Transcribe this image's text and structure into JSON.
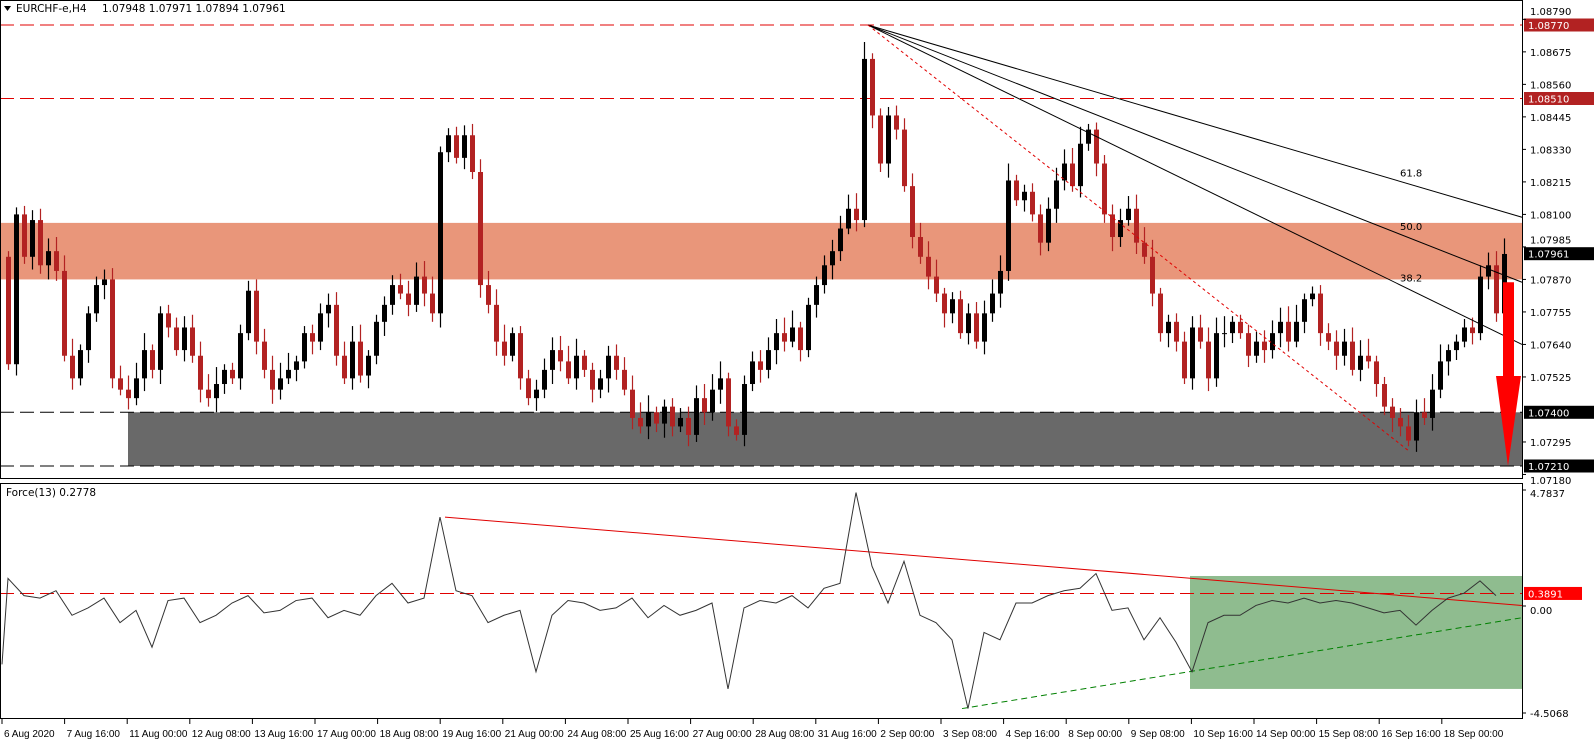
{
  "header": {
    "symbol": "EURCHF-e,H4",
    "ohlc": "1.07948 1.07971 1.07894 1.07961"
  },
  "indicator": {
    "label": "Force(13) 0.2778"
  },
  "colors": {
    "bull": "#000000",
    "bear": "#b22222",
    "resistance_zone": "#e9967a",
    "support_zone": "#696969",
    "force_zone": "#8fbc8f",
    "arrow": "#ff0000",
    "level_red": "#ff0000"
  },
  "chart_data": [
    {
      "type": "candlestick",
      "title": "EURCHF-e,H4",
      "ylim": [
        1.0718,
        1.0879
      ],
      "y_ticks": [
        "1.08790",
        "1.08675",
        "1.08560",
        "1.08445",
        "1.08330",
        "1.08215",
        "1.08100",
        "1.07985",
        "1.07870",
        "1.07755",
        "1.07640",
        "1.07525",
        "1.07295",
        "1.07180"
      ],
      "x_ticks": [
        "6 Aug 2020",
        "7 Aug 16:00",
        "11 Aug 00:00",
        "12 Aug 08:00",
        "13 Aug 16:00",
        "17 Aug 00:00",
        "18 Aug 08:00",
        "19 Aug 16:00",
        "21 Aug 00:00",
        "24 Aug 08:00",
        "25 Aug 16:00",
        "27 Aug 00:00",
        "28 Aug 08:00",
        "31 Aug 16:00",
        "2 Sep 00:00",
        "3 Sep 08:00",
        "4 Sep 16:00",
        "8 Sep 00:00",
        "9 Sep 08:00",
        "10 Sep 16:00",
        "14 Sep 00:00",
        "15 Sep 08:00",
        "16 Sep 16:00",
        "18 Sep 00:00"
      ],
      "first_open": 1.0795,
      "close": [
        1.0757,
        1.081,
        1.0795,
        1.0808,
        1.0792,
        1.0797,
        1.079,
        1.076,
        1.0752,
        1.0762,
        1.0775,
        1.0785,
        1.0787,
        1.0752,
        1.0748,
        1.0745,
        1.0752,
        1.0762,
        1.0755,
        1.0775,
        1.077,
        1.0762,
        1.077,
        1.076,
        1.0748,
        1.0745,
        1.075,
        1.0755,
        1.0752,
        1.0768,
        1.0783,
        1.0765,
        1.0755,
        1.0748,
        1.0752,
        1.0755,
        1.0758,
        1.0768,
        1.0765,
        1.0775,
        1.0778,
        1.076,
        1.0752,
        1.0765,
        1.0753,
        1.076,
        1.0772,
        1.0778,
        1.0785,
        1.0782,
        1.0778,
        1.0788,
        1.0782,
        1.0775,
        1.0832,
        1.0838,
        1.083,
        1.0838,
        1.0825,
        1.0785,
        1.0778,
        1.0765,
        1.076,
        1.0768,
        1.0752,
        1.0745,
        1.0748,
        1.0755,
        1.0762,
        1.0758,
        1.0752,
        1.076,
        1.0755,
        1.0748,
        1.0752,
        1.076,
        1.0755,
        1.0748,
        1.0738,
        1.0735,
        1.074,
        1.0736,
        1.0742,
        1.0735,
        1.0738,
        1.0732,
        1.0745,
        1.074,
        1.0748,
        1.0752,
        1.0735,
        1.0732,
        1.075,
        1.0758,
        1.0755,
        1.0762,
        1.0768,
        1.0765,
        1.077,
        1.0762,
        1.0778,
        1.0785,
        1.0792,
        1.0797,
        1.0805,
        1.0812,
        1.0808,
        1.0865,
        1.0845,
        1.0828,
        1.0845,
        1.084,
        1.082,
        1.0802,
        1.0795,
        1.0788,
        1.0782,
        1.0775,
        1.078,
        1.0768,
        1.0775,
        1.0765,
        1.0775,
        1.0782,
        1.079,
        1.0822,
        1.0815,
        1.0818,
        1.081,
        1.08,
        1.0812,
        1.0822,
        1.0828,
        1.082,
        1.0835,
        1.084,
        1.0828,
        1.081,
        1.0802,
        1.0808,
        1.0812,
        1.08,
        1.0795,
        1.0782,
        1.0768,
        1.0772,
        1.0765,
        1.0752,
        1.077,
        1.0765,
        1.0752,
        1.0768,
        1.0768,
        1.0772,
        1.0768,
        1.076,
        1.0765,
        1.0762,
        1.0768,
        1.0772,
        1.0765,
        1.0772,
        1.078,
        1.0782,
        1.0768,
        1.0765,
        1.076,
        1.0765,
        1.0755,
        1.076,
        1.0758,
        1.075,
        1.0742,
        1.0738,
        1.0735,
        1.073,
        1.074,
        1.0738,
        1.0748,
        1.0758,
        1.0762,
        1.0765,
        1.077,
        1.0768,
        1.0788,
        1.0792,
        1.0775,
        1.0796
      ],
      "levels": [
        {
          "price": 1.0877,
          "label": "1.08770",
          "color": "red"
        },
        {
          "price": 1.0851,
          "label": "1.08510",
          "color": "red"
        },
        {
          "price": 1.074,
          "label": "1.07400",
          "color": "black"
        },
        {
          "price": 1.0721,
          "label": "1.07210",
          "color": "black"
        }
      ],
      "current_price": {
        "price": 1.07961,
        "label": "1.07961"
      },
      "resistance_zone": [
        1.0787,
        1.0807
      ],
      "support_zone": [
        1.0721,
        1.074
      ],
      "fib_fan": [
        {
          "label": "61.8",
          "end_price": 1.0809
        },
        {
          "label": "50.0",
          "end_price": 1.0786
        },
        {
          "label": "38.2",
          "end_price": 1.0764
        }
      ],
      "fan_origin_price": 1.0877,
      "red_trendline_end_price": 1.0726,
      "arrow": {
        "from_price": 1.0786,
        "to_price": 1.0721,
        "direction": "down"
      }
    },
    {
      "type": "line",
      "title": "Force(13) 0.2778",
      "ylim": [
        -4.5068,
        4.7837
      ],
      "y_ticks": [
        "4.7837",
        "0.00",
        "-4.5068"
      ],
      "level": {
        "value": 0.3891,
        "label": "0.3891"
      },
      "values": [
        1.0,
        0.3,
        0.2,
        0.5,
        -0.5,
        -0.2,
        0.2,
        -0.8,
        -0.3,
        -1.8,
        0.1,
        0.2,
        -0.8,
        -0.5,
        0.0,
        0.3,
        -0.4,
        -0.3,
        0.1,
        0.2,
        -0.6,
        -0.3,
        -0.5,
        0.3,
        0.8,
        0.0,
        0.2,
        3.5,
        0.5,
        0.3,
        -0.8,
        -0.5,
        -0.3,
        -2.8,
        -0.5,
        0.1,
        0.0,
        -0.3,
        -0.2,
        0.2,
        -0.6,
        -0.1,
        -0.5,
        -0.3,
        0.0,
        -3.5,
        -0.2,
        0.1,
        0.0,
        0.3,
        -0.2,
        0.6,
        0.8,
        4.5,
        1.5,
        0.0,
        1.7,
        -0.5,
        -0.8,
        -1.5,
        -4.3,
        -1.2,
        -1.5,
        0.0,
        0.0,
        0.3,
        0.5,
        0.6,
        1.2,
        -0.3,
        -0.2,
        -1.5,
        -0.6,
        -1.6,
        -2.8,
        -0.8,
        -0.5,
        -0.5,
        -0.1,
        0.1,
        0.0,
        0.2,
        0.0,
        0.1,
        0.0,
        -0.2,
        -0.4,
        -0.3,
        -0.9,
        -0.3,
        0.2,
        0.4,
        0.9,
        0.3
      ],
      "zone": [
        -3.5,
        1.1
      ],
      "red_trendline": [
        3.5,
        -0.1
      ],
      "green_trendline": [
        -4.3,
        -0.6
      ]
    }
  ]
}
